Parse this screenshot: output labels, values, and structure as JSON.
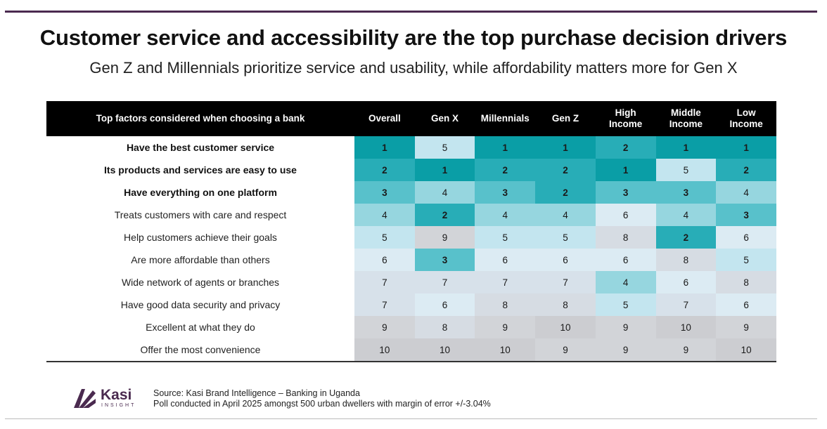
{
  "title": "Customer service and accessibility are the top purchase decision drivers",
  "subtitle": "Gen Z and Millennials prioritize service and usability, while affordability matters more for Gen X",
  "chart_data": {
    "type": "table",
    "row_header": "Top factors considered when choosing a bank",
    "columns": [
      {
        "line1": "Overall",
        "line2": ""
      },
      {
        "line1": "Gen X",
        "line2": ""
      },
      {
        "line1": "Millennials",
        "line2": ""
      },
      {
        "line1": "Gen Z",
        "line2": ""
      },
      {
        "line1": "High",
        "line2": "Income"
      },
      {
        "line1": "Middle",
        "line2": "Income"
      },
      {
        "line1": "Low",
        "line2": "Income"
      }
    ],
    "rows": [
      {
        "label": "Have the best customer service",
        "bold": true,
        "values": [
          1,
          5,
          1,
          1,
          2,
          1,
          1
        ]
      },
      {
        "label": "Its products and services are easy to use",
        "bold": true,
        "values": [
          2,
          1,
          2,
          2,
          1,
          5,
          2
        ]
      },
      {
        "label": "Have everything on one platform",
        "bold": true,
        "values": [
          3,
          4,
          3,
          2,
          3,
          3,
          4
        ]
      },
      {
        "label": "Treats customers with care and respect",
        "bold": false,
        "values": [
          4,
          2,
          4,
          4,
          6,
          4,
          3
        ]
      },
      {
        "label": "Help customers achieve their goals",
        "bold": false,
        "values": [
          5,
          9,
          5,
          5,
          8,
          2,
          6
        ]
      },
      {
        "label": "Are more affordable than others",
        "bold": false,
        "values": [
          6,
          3,
          6,
          6,
          6,
          8,
          5
        ]
      },
      {
        "label": "Wide network of agents or branches",
        "bold": false,
        "values": [
          7,
          7,
          7,
          7,
          4,
          6,
          8
        ]
      },
      {
        "label": "Have good data security and privacy",
        "bold": false,
        "values": [
          7,
          6,
          8,
          8,
          5,
          7,
          6
        ]
      },
      {
        "label": "Excellent at what they do",
        "bold": false,
        "values": [
          9,
          8,
          9,
          10,
          9,
          10,
          9
        ]
      },
      {
        "label": "Offer the most convenience",
        "bold": false,
        "values": [
          10,
          10,
          10,
          9,
          9,
          9,
          10
        ]
      }
    ],
    "rank_colors": {
      "1": "#0a9ea6",
      "2": "#28adb7",
      "3": "#58c1cb",
      "4": "#96d6df",
      "5": "#c3e5ef",
      "6": "#dcebf3",
      "7": "#d7e1ea",
      "8": "#d6dce3",
      "9": "#d2d4d8",
      "10": "#cccdd1"
    }
  },
  "brand": {
    "name": "Kasi",
    "tagline": "INSIGHT",
    "color": "#4a2a4f"
  },
  "source": {
    "line1": "Source: Kasi Brand Intelligence – Banking in Uganda",
    "line2": "Poll conducted in April 2025 amongst 500 urban dwellers with margin of error +/-3.04%"
  }
}
